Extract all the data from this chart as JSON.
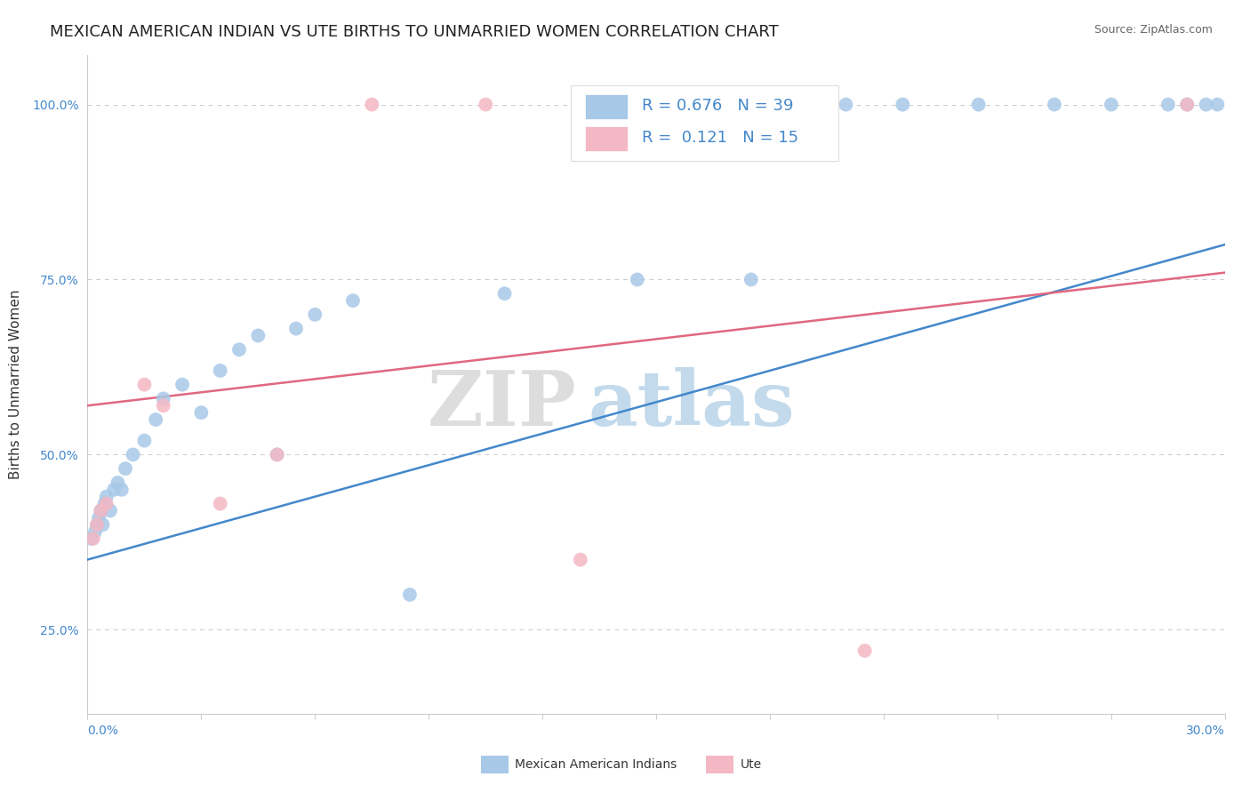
{
  "title": "MEXICAN AMERICAN INDIAN VS UTE BIRTHS TO UNMARRIED WOMEN CORRELATION CHART",
  "source": "Source: ZipAtlas.com",
  "ylabel": "Births to Unmarried Women",
  "xlim": [
    0.0,
    30.0
  ],
  "ylim": [
    13.0,
    107.0
  ],
  "yticks": [
    25.0,
    50.0,
    75.0,
    100.0
  ],
  "ytick_labels": [
    "25.0%",
    "50.0%",
    "75.0%",
    "100.0%"
  ],
  "blue_color": "#a8c8e8",
  "pink_color": "#f4b8c4",
  "blue_line_color": "#4488cc",
  "pink_line_color": "#e06880",
  "legend_R_blue": "0.676",
  "legend_N_blue": "39",
  "legend_R_pink": "0.121",
  "legend_N_pink": "15",
  "watermark_zip": "ZIP",
  "watermark_atlas": "atlas",
  "grid_color": "#cccccc",
  "background_color": "#ffffff",
  "title_fontsize": 13,
  "axis_label_fontsize": 11,
  "tick_fontsize": 10,
  "legend_fontsize": 13,
  "blue_line_x0": 0.0,
  "blue_line_y0": 35.0,
  "blue_line_x1": 30.0,
  "blue_line_y1": 80.0,
  "pink_line_x0": 0.0,
  "pink_line_y0": 57.0,
  "pink_line_x1": 30.0,
  "pink_line_y1": 76.0,
  "blue_x": [
    0.1,
    0.2,
    0.25,
    0.3,
    0.35,
    0.4,
    0.45,
    0.5,
    0.6,
    0.7,
    0.8,
    0.9,
    1.0,
    1.2,
    1.5,
    1.8,
    2.0,
    2.5,
    3.0,
    3.5,
    4.0,
    4.5,
    5.0,
    5.5,
    6.0,
    7.0,
    8.5,
    11.0,
    14.5,
    17.5,
    20.0,
    21.5,
    23.5,
    25.5,
    27.0,
    28.5,
    29.0,
    29.5,
    29.8
  ],
  "blue_y": [
    38,
    39,
    40,
    41,
    42,
    40,
    43,
    44,
    42,
    45,
    46,
    45,
    48,
    50,
    52,
    55,
    58,
    60,
    56,
    62,
    65,
    67,
    50,
    68,
    70,
    72,
    30,
    73,
    75,
    75,
    100,
    100,
    100,
    100,
    100,
    100,
    100,
    100,
    100
  ],
  "pink_x": [
    0.15,
    0.25,
    0.35,
    0.5,
    1.5,
    2.0,
    3.5,
    5.0,
    7.5,
    10.5,
    13.0,
    15.0,
    17.0,
    20.5,
    29.0
  ],
  "pink_y": [
    38,
    40,
    42,
    43,
    60,
    57,
    43,
    50,
    100,
    100,
    35,
    100,
    100,
    22,
    100
  ]
}
